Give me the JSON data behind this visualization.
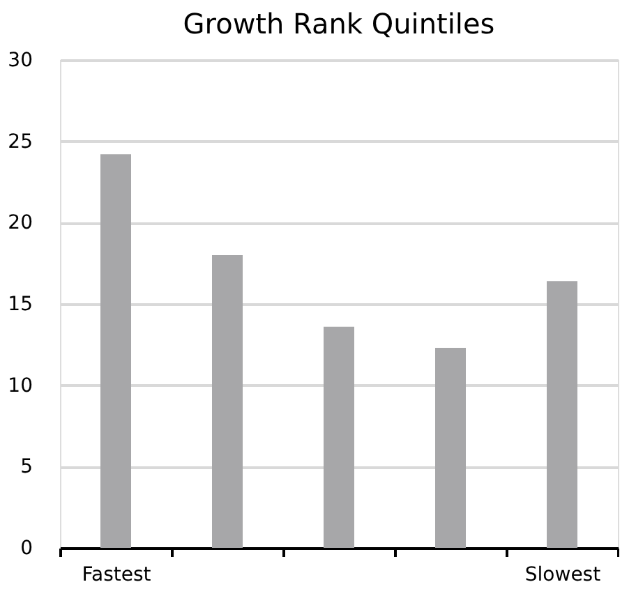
{
  "chart_data": {
    "type": "bar",
    "title": "Growth Rank Quintiles",
    "categories": [
      "Fastest",
      null,
      null,
      null,
      "Slowest"
    ],
    "values": [
      24.2,
      18.0,
      13.6,
      12.3,
      16.4
    ],
    "color": "#a7a7a9",
    "ylim": [
      0,
      30
    ],
    "yticks": [
      0,
      5,
      10,
      15,
      20,
      25,
      30
    ],
    "grid": "y"
  }
}
